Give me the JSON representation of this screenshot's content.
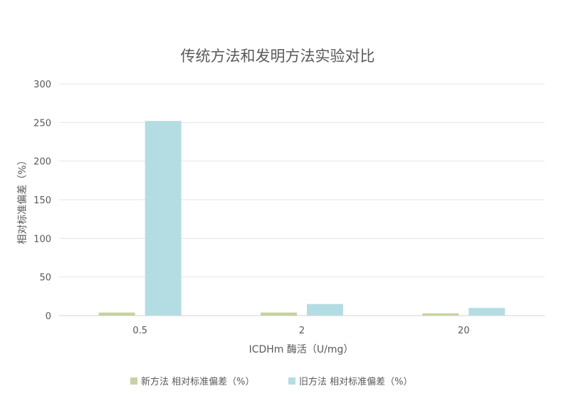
{
  "chart_data": {
    "type": "bar",
    "title": "传统方法和发明方法实验对比",
    "xlabel": "ICDHm 酶活（U/mg）",
    "ylabel": "相对标准偏差（%）",
    "categories": [
      "0.5",
      "2",
      "20"
    ],
    "ylim": [
      0,
      300
    ],
    "yticks": [
      0,
      50,
      100,
      150,
      200,
      250,
      300
    ],
    "grid": true,
    "legend": "bottom",
    "series": [
      {
        "name": "新方法 相对标准偏差（%）",
        "values": [
          4,
          4,
          3
        ],
        "color": "#c5d3a0"
      },
      {
        "name": "旧方法 相对标准偏差（%）",
        "values": [
          252,
          15,
          10
        ],
        "color": "#b4dde3"
      }
    ]
  }
}
